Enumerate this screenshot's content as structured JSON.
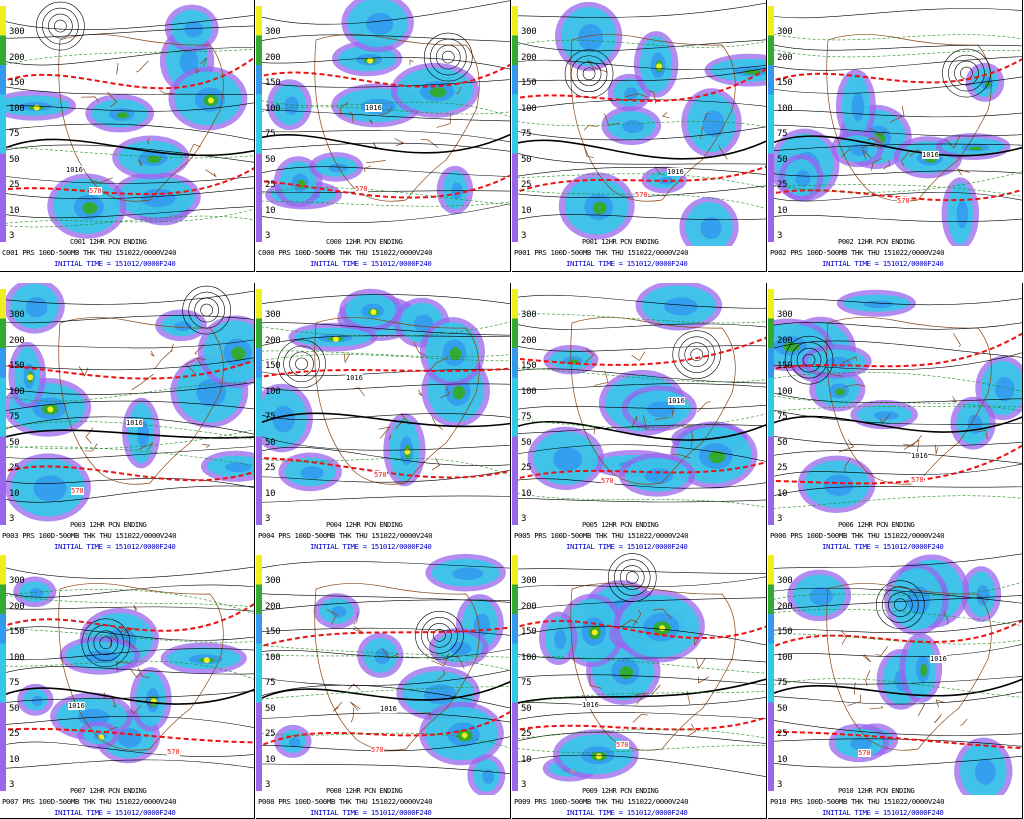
{
  "scale_ticks": [
    "300",
    "200",
    "150",
    "100",
    "75",
    "50",
    "25",
    "10",
    "3"
  ],
  "colors": {
    "precip_light": "#9966ee",
    "precip_mid": "#33c8e8",
    "precip_blue": "#3399ee",
    "precip_green": "#33aa33",
    "precip_yellow": "#eeee22",
    "thickness": "#ee1111",
    "land": "#8b4513",
    "isobar": "#000000",
    "caption_blue": "#0000cc"
  },
  "panels": [
    {
      "id": "C001",
      "overtitle": "C001 12HR PCN ENDING",
      "caption": "C001 PRS 100D-500MB THK THU 151022/0000V240",
      "init": "INITIAL TIME = 151012/0000F240"
    },
    {
      "id": "C000",
      "overtitle": "C000 12HR PCN ENDING",
      "caption": "C000 PRS 100D-500MB THK THU 151022/0000V240",
      "init": "INITIAL TIME = 151012/0000F240"
    },
    {
      "id": "P001",
      "overtitle": "P001 12HR PCN ENDING",
      "caption": "P001 PRS 100D-500MB THK THU 151022/0000V240",
      "init": "INITIAL TIME = 151012/0000F240"
    },
    {
      "id": "P002",
      "overtitle": "P002 12HR PCN ENDING",
      "caption": "P002 PRS 100D-500MB THK THU 151022/0000V240",
      "init": "INITIAL TIME = 151012/0000F240"
    },
    {
      "id": "P003",
      "overtitle": "P003 12HR PCN ENDING",
      "caption": "P003 PRS 100D-500MB THK THU 151022/0000V240",
      "init": "INITIAL TIME = 151012/0000F240"
    },
    {
      "id": "P004",
      "overtitle": "P004 12HR PCN ENDING",
      "caption": "P004 PRS 100D-500MB THK THU 151022/0000V240",
      "init": "INITIAL TIME = 151012/0000F240"
    },
    {
      "id": "P005",
      "overtitle": "P005 12HR PCN ENDING",
      "caption": "P005 PRS 100D-500MB THK THU 151022/0000V240",
      "init": "INITIAL TIME = 151012/0000F240"
    },
    {
      "id": "P006",
      "overtitle": "P006 12HR PCN ENDING",
      "caption": "P006 PRS 100D-500MB THK THU 151022/0000V240",
      "init": "INITIAL TIME = 151012/0000F240"
    },
    {
      "id": "P007",
      "overtitle": "P007 12HR PCN ENDING",
      "caption": "P007 PRS 100D-500MB THK THU 151022/0000V240",
      "init": "INITIAL TIME = 151012/0000F240"
    },
    {
      "id": "P008",
      "overtitle": "P008 12HR PCN ENDING",
      "caption": "P008 PRS 100D-500MB THK THU 151022/0000V240",
      "init": "INITIAL TIME = 151012/0000F240"
    },
    {
      "id": "P009",
      "overtitle": "P009 12HR PCN ENDING",
      "caption": "P009 PRS 100D-500MB THK THU 151022/0000V240",
      "init": "INITIAL TIME = 151012/0000F240"
    },
    {
      "id": "P010",
      "overtitle": "P010 12HR PCN ENDING",
      "caption": "P010 PRS 100D-500MB THK THU 151022/0000V240",
      "init": "INITIAL TIME = 151012/0000F240"
    }
  ],
  "contour_labels": [
    "1016",
    "570",
    "1016",
    "570",
    "1016",
    "570",
    "1016",
    "570",
    "1016",
    "570",
    "1016",
    "570",
    "1016",
    "570",
    "1016",
    "570",
    "1016",
    "570",
    "1016",
    "570",
    "1016",
    "570",
    "1016",
    "570"
  ]
}
